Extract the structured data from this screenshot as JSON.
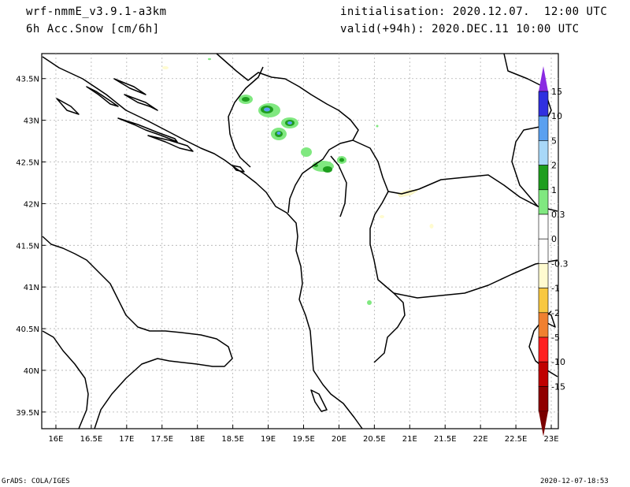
{
  "header": {
    "model": "wrf-nmmE_v3.9.1-a3km",
    "variable": "6h Acc.Snow [cm/6h]",
    "init": "initialisation: 2020.12.07.  12:00 UTC",
    "valid": "valid(+94h): 2020.DEC.11 10:00 UTC"
  },
  "footer": {
    "left": "GrADS: COLA/IGES",
    "right": "2020-12-07-18:53"
  },
  "map": {
    "lon_range": [
      15.8,
      23.1
    ],
    "lat_range": [
      39.3,
      43.8
    ],
    "lon_ticks": [
      {
        "v": 16,
        "label": "16E"
      },
      {
        "v": 16.5,
        "label": "16.5E"
      },
      {
        "v": 17,
        "label": "17E"
      },
      {
        "v": 17.5,
        "label": "17.5E"
      },
      {
        "v": 18,
        "label": "18E"
      },
      {
        "v": 18.5,
        "label": "18.5E"
      },
      {
        "v": 19,
        "label": "19E"
      },
      {
        "v": 19.5,
        "label": "19.5E"
      },
      {
        "v": 20,
        "label": "20E"
      },
      {
        "v": 20.5,
        "label": "20.5E"
      },
      {
        "v": 21,
        "label": "21E"
      },
      {
        "v": 21.5,
        "label": "21.5E"
      },
      {
        "v": 22,
        "label": "22E"
      },
      {
        "v": 22.5,
        "label": "22.5E"
      },
      {
        "v": 23,
        "label": "23E"
      }
    ],
    "lat_ticks": [
      {
        "v": 43.5,
        "label": "43.5N"
      },
      {
        "v": 43,
        "label": "43N"
      },
      {
        "v": 42.5,
        "label": "42.5N"
      },
      {
        "v": 42,
        "label": "42N"
      },
      {
        "v": 41.5,
        "label": "41.5N"
      },
      {
        "v": 41,
        "label": "41N"
      },
      {
        "v": 40.5,
        "label": "40.5N"
      },
      {
        "v": 40,
        "label": "40N"
      },
      {
        "v": 39.5,
        "label": "39.5N"
      }
    ]
  },
  "colorbar": {
    "arrow_top_color": "#8a2be2",
    "arrow_bottom_color": "#7a0000",
    "bins": [
      {
        "color": "#3030e0"
      },
      {
        "color": "#5aa0f0"
      },
      {
        "color": "#a8d8f8"
      },
      {
        "color": "#1e9e1e"
      },
      {
        "color": "#80e880"
      },
      {
        "color": "#ffffff"
      },
      {
        "color": "#ffffff"
      },
      {
        "color": "#fffbd0"
      },
      {
        "color": "#f8c840"
      },
      {
        "color": "#f08030"
      },
      {
        "color": "#ff2020"
      },
      {
        "color": "#c00000"
      },
      {
        "color": "#900000"
      }
    ],
    "labels": [
      "15",
      "10",
      "5",
      "2",
      "1",
      "0.3",
      "0",
      "-0.3",
      "-1",
      "-2",
      "-5",
      "-10",
      "-15"
    ]
  }
}
